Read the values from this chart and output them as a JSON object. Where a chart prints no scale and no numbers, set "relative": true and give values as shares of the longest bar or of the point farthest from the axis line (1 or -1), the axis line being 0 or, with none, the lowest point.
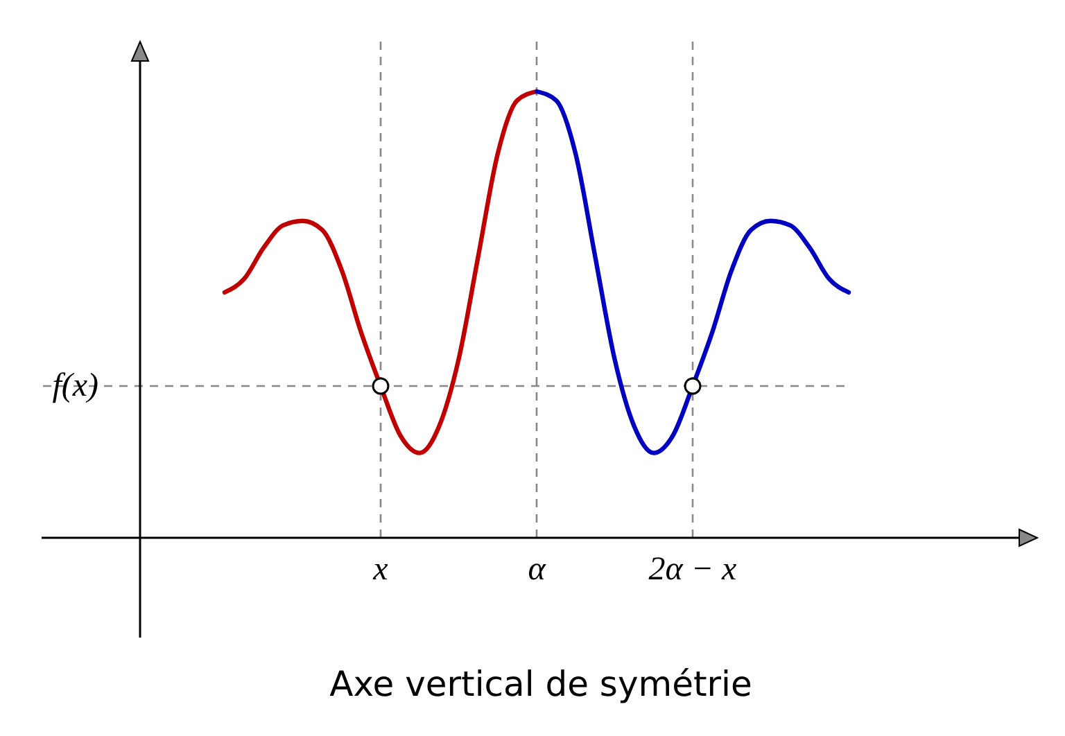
{
  "chart_data": {
    "type": "line",
    "title": "Axe vertical de symétrie",
    "relative": true,
    "line_style": "solid",
    "categories": [
      null,
      null,
      null,
      null,
      null,
      null,
      null,
      null,
      "x",
      null,
      null,
      null,
      null,
      null,
      null,
      null,
      "α",
      null,
      null,
      null,
      null,
      null,
      null,
      null,
      "2α − x",
      null,
      null,
      null,
      null,
      null,
      null,
      null,
      null
    ],
    "series": [
      {
        "color": "#c00000",
        "values": [
          0.55,
          0.58,
          0.65,
          0.7,
          0.71,
          0.69,
          0.6,
          0.46,
          0.34,
          0.23,
          0.19,
          0.25,
          0.4,
          0.63,
          0.86,
          0.98,
          1,
          null,
          null,
          null,
          null,
          null,
          null,
          null,
          null,
          null,
          null,
          null,
          null,
          null,
          null,
          null,
          null
        ]
      },
      {
        "color": "#0000c0",
        "values": [
          null,
          null,
          null,
          null,
          null,
          null,
          null,
          null,
          null,
          null,
          null,
          null,
          null,
          null,
          null,
          null,
          1,
          0.98,
          0.86,
          0.63,
          0.4,
          0.25,
          0.19,
          0.23,
          0.34,
          0.46,
          0.6,
          0.69,
          0.71,
          0.7,
          0.65,
          0.58,
          0.55
        ]
      },
      {
        "type": "scatter",
        "marker": "circle",
        "color": "#ffffff",
        "x": [
          "x",
          "2α − x"
        ],
        "values": [
          0.34,
          0.34
        ]
      }
    ],
    "ref_lines": [
      {
        "axis": "x",
        "value": "α",
        "line_style": "dashed",
        "color": "#888888"
      },
      {
        "axis": "x",
        "value": "x",
        "line_style": "dashed",
        "color": "#888888"
      },
      {
        "axis": "x",
        "value": "2α − x",
        "line_style": "dashed",
        "color": "#888888"
      },
      {
        "axis": "y",
        "value": 0.34,
        "label": "f(x)",
        "line_style": "dashed",
        "color": "#888888"
      }
    ]
  }
}
